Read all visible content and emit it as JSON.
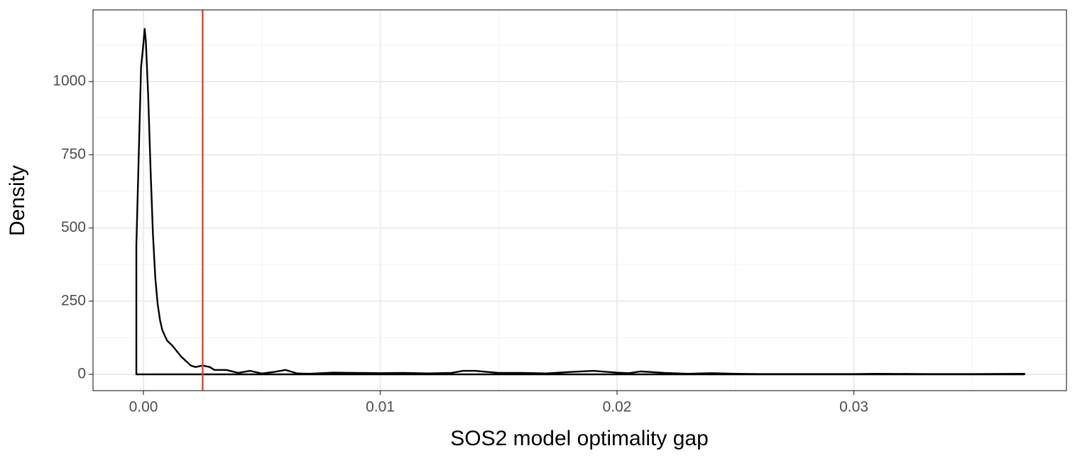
{
  "chart_data": {
    "type": "density",
    "xlabel": "SOS2 model optimality gap",
    "ylabel": "Density",
    "x": [
      -0.0003,
      -0.0001,
      0.0,
      5e-05,
      0.0001,
      0.0002,
      0.0003,
      0.0004,
      0.0005,
      0.0006,
      0.0007,
      0.0008,
      0.001,
      0.0012,
      0.0014,
      0.0016,
      0.0018,
      0.002,
      0.0022,
      0.0025,
      0.0028,
      0.003,
      0.0035,
      0.004,
      0.0045,
      0.005,
      0.0055,
      0.006,
      0.0065,
      0.007,
      0.008,
      0.009,
      0.01,
      0.011,
      0.012,
      0.013,
      0.0135,
      0.014,
      0.015,
      0.016,
      0.017,
      0.018,
      0.019,
      0.02,
      0.0205,
      0.021,
      0.022,
      0.023,
      0.024,
      0.025,
      0.026,
      0.028,
      0.03,
      0.031,
      0.033,
      0.035,
      0.0372
    ],
    "values": [
      440,
      1050,
      1130,
      1180,
      1140,
      950,
      700,
      480,
      330,
      240,
      185,
      150,
      115,
      100,
      80,
      60,
      45,
      30,
      25,
      30,
      25,
      15,
      15,
      5,
      12,
      3,
      8,
      15,
      3,
      2,
      6,
      5,
      4,
      5,
      3,
      5,
      12,
      12,
      5,
      5,
      3,
      8,
      12,
      6,
      4,
      10,
      5,
      2,
      4,
      2,
      1,
      1,
      1,
      2,
      1,
      1,
      2
    ],
    "color": "#000000",
    "vline": {
      "x": 0.0025,
      "color": "#e8402e"
    },
    "xlim": [
      -0.00213,
      0.03898
    ],
    "ylim": [
      -55.7,
      1244.6
    ],
    "xticks": [
      {
        "value": 0,
        "label": "0.00"
      },
      0.01,
      0.02,
      0.03
    ],
    "yticks": [
      0,
      250,
      500,
      750,
      1000
    ],
    "xminor": [
      0.005,
      0.015,
      0.025,
      0.035
    ],
    "yminor": [
      125,
      375,
      625,
      875,
      1125
    ],
    "grid": true
  }
}
